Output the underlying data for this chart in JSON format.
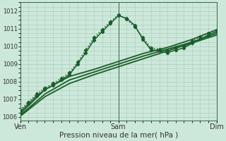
{
  "title": "",
  "xlabel": "Pression niveau de la mer( hPa )",
  "bg_color": "#cce8da",
  "grid_color": "#aaccbb",
  "line_color": "#1a5c2a",
  "xlim": [
    0,
    48
  ],
  "ylim": [
    1005.8,
    1012.5
  ],
  "yticks": [
    1006,
    1007,
    1008,
    1009,
    1010,
    1011,
    1012
  ],
  "xtick_positions": [
    0,
    24,
    48
  ],
  "xtick_labels": [
    "Ven",
    "Sam",
    "Dim"
  ],
  "vlines": [
    0,
    24,
    48
  ],
  "series": [
    {
      "x": [
        0,
        6,
        12,
        18,
        24,
        30,
        36,
        42,
        48
      ],
      "y": [
        1006.05,
        1007.15,
        1007.9,
        1008.4,
        1008.85,
        1009.3,
        1009.75,
        1010.2,
        1010.65
      ],
      "style": "-",
      "marker": null,
      "lw": 1.3,
      "ms": 0
    },
    {
      "x": [
        0,
        6,
        12,
        18,
        24,
        30,
        36,
        42,
        48
      ],
      "y": [
        1006.1,
        1007.3,
        1008.1,
        1008.55,
        1009.0,
        1009.45,
        1009.85,
        1010.25,
        1010.75
      ],
      "style": "-",
      "marker": null,
      "lw": 1.3,
      "ms": 0
    },
    {
      "x": [
        0,
        6,
        12,
        18,
        24,
        30,
        36,
        42,
        48
      ],
      "y": [
        1006.2,
        1007.55,
        1008.3,
        1008.7,
        1009.15,
        1009.6,
        1009.95,
        1010.4,
        1010.95
      ],
      "style": "-",
      "marker": null,
      "lw": 1.3,
      "ms": 0
    },
    {
      "x": [
        0,
        2,
        4,
        6,
        8,
        10,
        12,
        14,
        16,
        18,
        20,
        22,
        24,
        26,
        28,
        30,
        32,
        34,
        36,
        38,
        40,
        42,
        44,
        46,
        48
      ],
      "y": [
        1006.4,
        1006.85,
        1007.3,
        1007.65,
        1007.9,
        1008.2,
        1008.5,
        1009.1,
        1009.8,
        1010.5,
        1010.95,
        1011.4,
        1011.8,
        1011.55,
        1011.1,
        1010.5,
        1009.9,
        1009.85,
        1009.75,
        1009.95,
        1010.05,
        1010.3,
        1010.55,
        1010.75,
        1010.9
      ],
      "style": ":",
      "marker": "D",
      "lw": 1.1,
      "ms": 2.2
    },
    {
      "x": [
        0,
        2,
        4,
        6,
        8,
        10,
        12,
        14,
        16,
        18,
        20,
        22,
        24,
        26,
        28,
        30,
        32,
        34,
        36,
        38,
        40,
        42,
        44,
        46,
        48
      ],
      "y": [
        1006.3,
        1006.75,
        1007.2,
        1007.55,
        1007.8,
        1008.1,
        1008.4,
        1009.0,
        1009.65,
        1010.35,
        1010.85,
        1011.3,
        1011.75,
        1011.6,
        1011.2,
        1010.4,
        1009.8,
        1009.75,
        1009.65,
        1009.8,
        1009.92,
        1010.18,
        1010.42,
        1010.65,
        1010.85
      ],
      "style": "-",
      "marker": "D",
      "lw": 1.1,
      "ms": 2.2
    }
  ]
}
